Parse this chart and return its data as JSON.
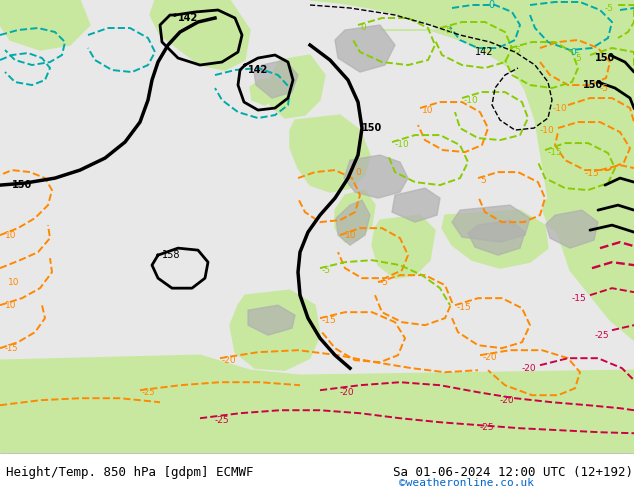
{
  "title_left": "Height/Temp. 850 hPa [gdpm] ECMWF",
  "title_right": "Sa 01-06-2024 12:00 UTC (12+192)",
  "credit": "©weatheronline.co.uk",
  "title_fontsize": 9,
  "credit_fontsize": 8,
  "credit_color": "#0066cc",
  "sea_color": "#e8e8e8",
  "land_color": "#c8e8a0",
  "gray_color": "#b0b0b0",
  "footer_color": "#ffffff",
  "black_lw": 2.0,
  "colored_lw": 1.4
}
